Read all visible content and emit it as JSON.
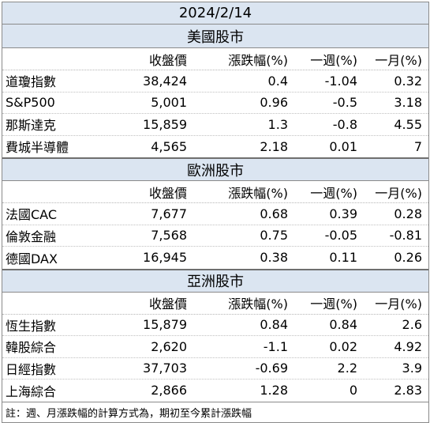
{
  "title": "2024/2/14",
  "headers": [
    "",
    "收盤價",
    "漲跌幅(%)",
    "一週(%)",
    "一月(%)"
  ],
  "sections": [
    {
      "name": "美國股市",
      "rows": [
        {
          "name": "道瓊指數",
          "close": "38,424",
          "change": "0.4",
          "week": "-1.04",
          "month": "0.32"
        },
        {
          "name": "S&P500",
          "close": "5,001",
          "change": "0.96",
          "week": "-0.5",
          "month": "3.18"
        },
        {
          "name": "那斯達克",
          "close": "15,859",
          "change": "1.3",
          "week": "-0.8",
          "month": "4.55"
        },
        {
          "name": "費城半導體",
          "close": "4,565",
          "change": "2.18",
          "week": "0.01",
          "month": "7"
        }
      ]
    },
    {
      "name": "歐洲股市",
      "rows": [
        {
          "name": "法國CAC",
          "close": "7,677",
          "change": "0.68",
          "week": "0.39",
          "month": "0.28"
        },
        {
          "name": "倫敦金融",
          "close": "7,568",
          "change": "0.75",
          "week": "-0.05",
          "month": "-0.81"
        },
        {
          "name": "德國DAX",
          "close": "16,945",
          "change": "0.38",
          "week": "0.11",
          "month": "0.26"
        }
      ]
    },
    {
      "name": "亞洲股市",
      "rows": [
        {
          "name": "恆生指數",
          "close": "15,879",
          "change": "0.84",
          "week": "0.84",
          "month": "2.6"
        },
        {
          "name": "韓股綜合",
          "close": "2,620",
          "change": "-1.1",
          "week": "0.02",
          "month": "4.92"
        },
        {
          "name": "日經指數",
          "close": "37,703",
          "change": "-0.69",
          "week": "2.2",
          "month": "3.9"
        },
        {
          "name": "上海綜合",
          "close": "2,866",
          "change": "1.28",
          "week": "0",
          "month": "2.83"
        }
      ]
    }
  ],
  "note": "註：週、月漲跌幅的計算方式為，期初至今累計漲跌幅"
}
